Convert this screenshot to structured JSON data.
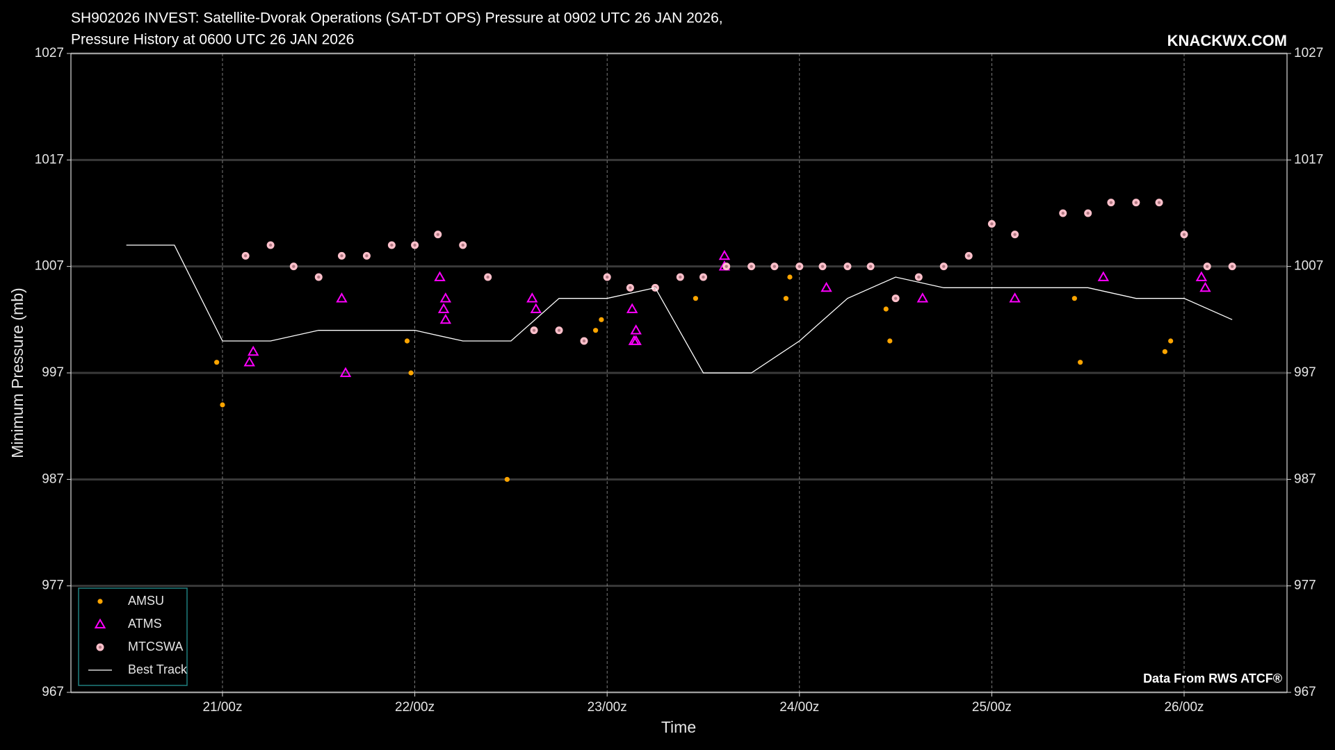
{
  "chart_data": {
    "type": "scatter",
    "title_lines": [
      "SH902026 INVEST: Satellite-Dvorak Operations (SAT-DT OPS) Pressure at 0902 UTC 26 JAN 2026,",
      "Pressure History at 0600 UTC 26 JAN 2026"
    ],
    "watermark": "KNACKWX.COM",
    "source": "Data From RWS ATCF®",
    "xlabel": "Time",
    "ylabel": "Minimum Pressure (mb)",
    "xlim": [
      20.212,
      26.535
    ],
    "xticks": [
      {
        "value": 21,
        "label": "21/00z"
      },
      {
        "value": 22,
        "label": "22/00z"
      },
      {
        "value": 23,
        "label": "23/00z"
      },
      {
        "value": 24,
        "label": "24/00z"
      },
      {
        "value": 25,
        "label": "25/00z"
      },
      {
        "value": 26,
        "label": "26/00z"
      }
    ],
    "ylim": [
      967,
      1027
    ],
    "yticks": [
      967,
      977,
      987,
      997,
      1007,
      1017,
      1027
    ],
    "y2lim": [
      967,
      1027
    ],
    "y2ticks": [
      967,
      977,
      987,
      997,
      1007,
      1017,
      1027
    ],
    "grid": true,
    "legend": "lower left",
    "series": [
      {
        "name": "AMSU",
        "marker": "dot",
        "color": "#ffa500",
        "x": [
          20.97,
          21.0,
          21.96,
          21.98,
          22.48,
          22.94,
          22.97,
          23.46,
          23.93,
          23.95,
          24.45,
          24.47,
          25.43,
          25.46,
          25.9,
          25.93
        ],
        "values": [
          998,
          994,
          1000,
          997,
          987,
          1001,
          1002,
          1004,
          1004,
          1006,
          1003,
          1000,
          1004,
          998,
          999,
          1000
        ]
      },
      {
        "name": "ATMS",
        "marker": "triangle",
        "color": "#ff00ff",
        "x": [
          21.14,
          21.16,
          21.62,
          21.64,
          22.13,
          22.15,
          22.16,
          22.16,
          22.61,
          22.63,
          23.13,
          23.14,
          23.15,
          23.15,
          23.61,
          23.61,
          24.14,
          24.64,
          25.12,
          25.58,
          26.09,
          26.11
        ],
        "values": [
          998,
          999,
          1004,
          997,
          1006,
          1003,
          1002,
          1004,
          1004,
          1003,
          1003,
          1000,
          1001,
          1000,
          1008,
          1007,
          1005,
          1004,
          1004,
          1006,
          1006,
          1005
        ]
      },
      {
        "name": "MTCSWA",
        "marker": "circle",
        "color": "#ffc0cb",
        "x": [
          21.12,
          21.25,
          21.37,
          21.5,
          21.62,
          21.75,
          21.88,
          22.0,
          22.12,
          22.25,
          22.38,
          22.62,
          22.75,
          22.88,
          23.0,
          23.12,
          23.25,
          23.38,
          23.5,
          23.62,
          23.75,
          23.87,
          24.0,
          24.12,
          24.25,
          24.37,
          24.5,
          24.62,
          24.75,
          24.88,
          25.0,
          25.12,
          25.37,
          25.5,
          25.62,
          25.75,
          25.87,
          26.0,
          26.12,
          26.25
        ],
        "values": [
          1008,
          1009,
          1007,
          1006,
          1008,
          1008,
          1009,
          1009,
          1010,
          1009,
          1006,
          1001,
          1001,
          1000,
          1006,
          1005,
          1005,
          1006,
          1006,
          1007,
          1007,
          1007,
          1007,
          1007,
          1007,
          1007,
          1004,
          1006,
          1007,
          1008,
          1011,
          1010,
          1012,
          1012,
          1013,
          1013,
          1013,
          1010,
          1007,
          1007
        ]
      },
      {
        "name": "Best Track",
        "marker": "line",
        "color": "#ffffff",
        "x": [
          20.5,
          20.75,
          21.0,
          21.25,
          21.5,
          21.75,
          22.0,
          22.25,
          22.5,
          22.75,
          23.0,
          23.25,
          23.5,
          23.75,
          24.0,
          24.25,
          24.5,
          24.75,
          25.0,
          25.25,
          25.5,
          25.75,
          26.0,
          26.25
        ],
        "values": [
          1009,
          1009,
          1000,
          1000,
          1001,
          1001,
          1001,
          1000,
          1000,
          1004,
          1004,
          1005,
          997,
          997,
          1000,
          1004,
          1006,
          1005,
          1005,
          1005,
          1005,
          1004,
          1004,
          1002
        ]
      }
    ]
  }
}
